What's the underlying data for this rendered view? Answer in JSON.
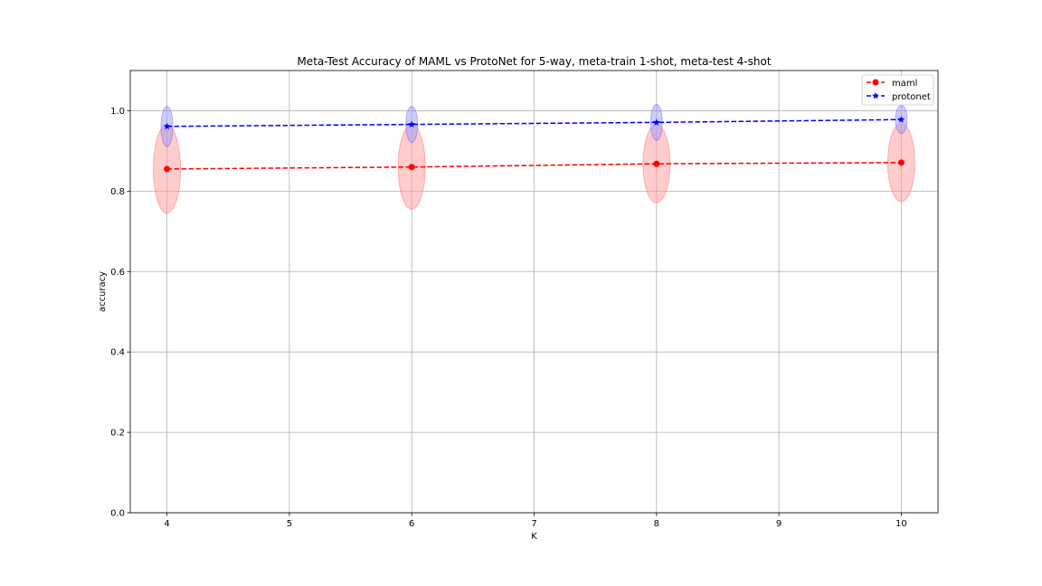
{
  "chart_data": {
    "type": "line",
    "title": "Meta-Test Accuracy of MAML vs ProtoNet for 5-way, meta-train 1-shot, meta-test 4-shot",
    "xlabel": "K",
    "ylabel": "accuracy",
    "xlim": [
      3.7,
      10.3
    ],
    "ylim": [
      0.0,
      1.1
    ],
    "xticks": [
      4,
      5,
      6,
      7,
      8,
      9,
      10
    ],
    "xtick_labels": [
      "4",
      "5",
      "6",
      "7",
      "8",
      "9",
      "10"
    ],
    "yticks": [
      0.0,
      0.2,
      0.4,
      0.6,
      0.8,
      1.0
    ],
    "ytick_labels": [
      "0.0",
      "0.2",
      "0.4",
      "0.6",
      "0.8",
      "1.0"
    ],
    "grid": true,
    "legend_position": "top-right",
    "x": [
      4,
      6,
      8,
      10
    ],
    "series": [
      {
        "name": "maml",
        "color": "#ff0000",
        "marker": "circle",
        "linestyle": "dashed",
        "values": [
          0.855,
          0.86,
          0.868,
          0.871
        ],
        "spread": [
          0.11,
          0.105,
          0.097,
          0.097
        ],
        "spread_color": "#ff9999"
      },
      {
        "name": "protonet",
        "color": "#0000ff",
        "marker": "star",
        "linestyle": "dashed",
        "values": [
          0.961,
          0.966,
          0.971,
          0.978
        ],
        "spread": [
          0.05,
          0.045,
          0.045,
          0.035
        ],
        "spread_color": "#9999ff"
      }
    ]
  }
}
